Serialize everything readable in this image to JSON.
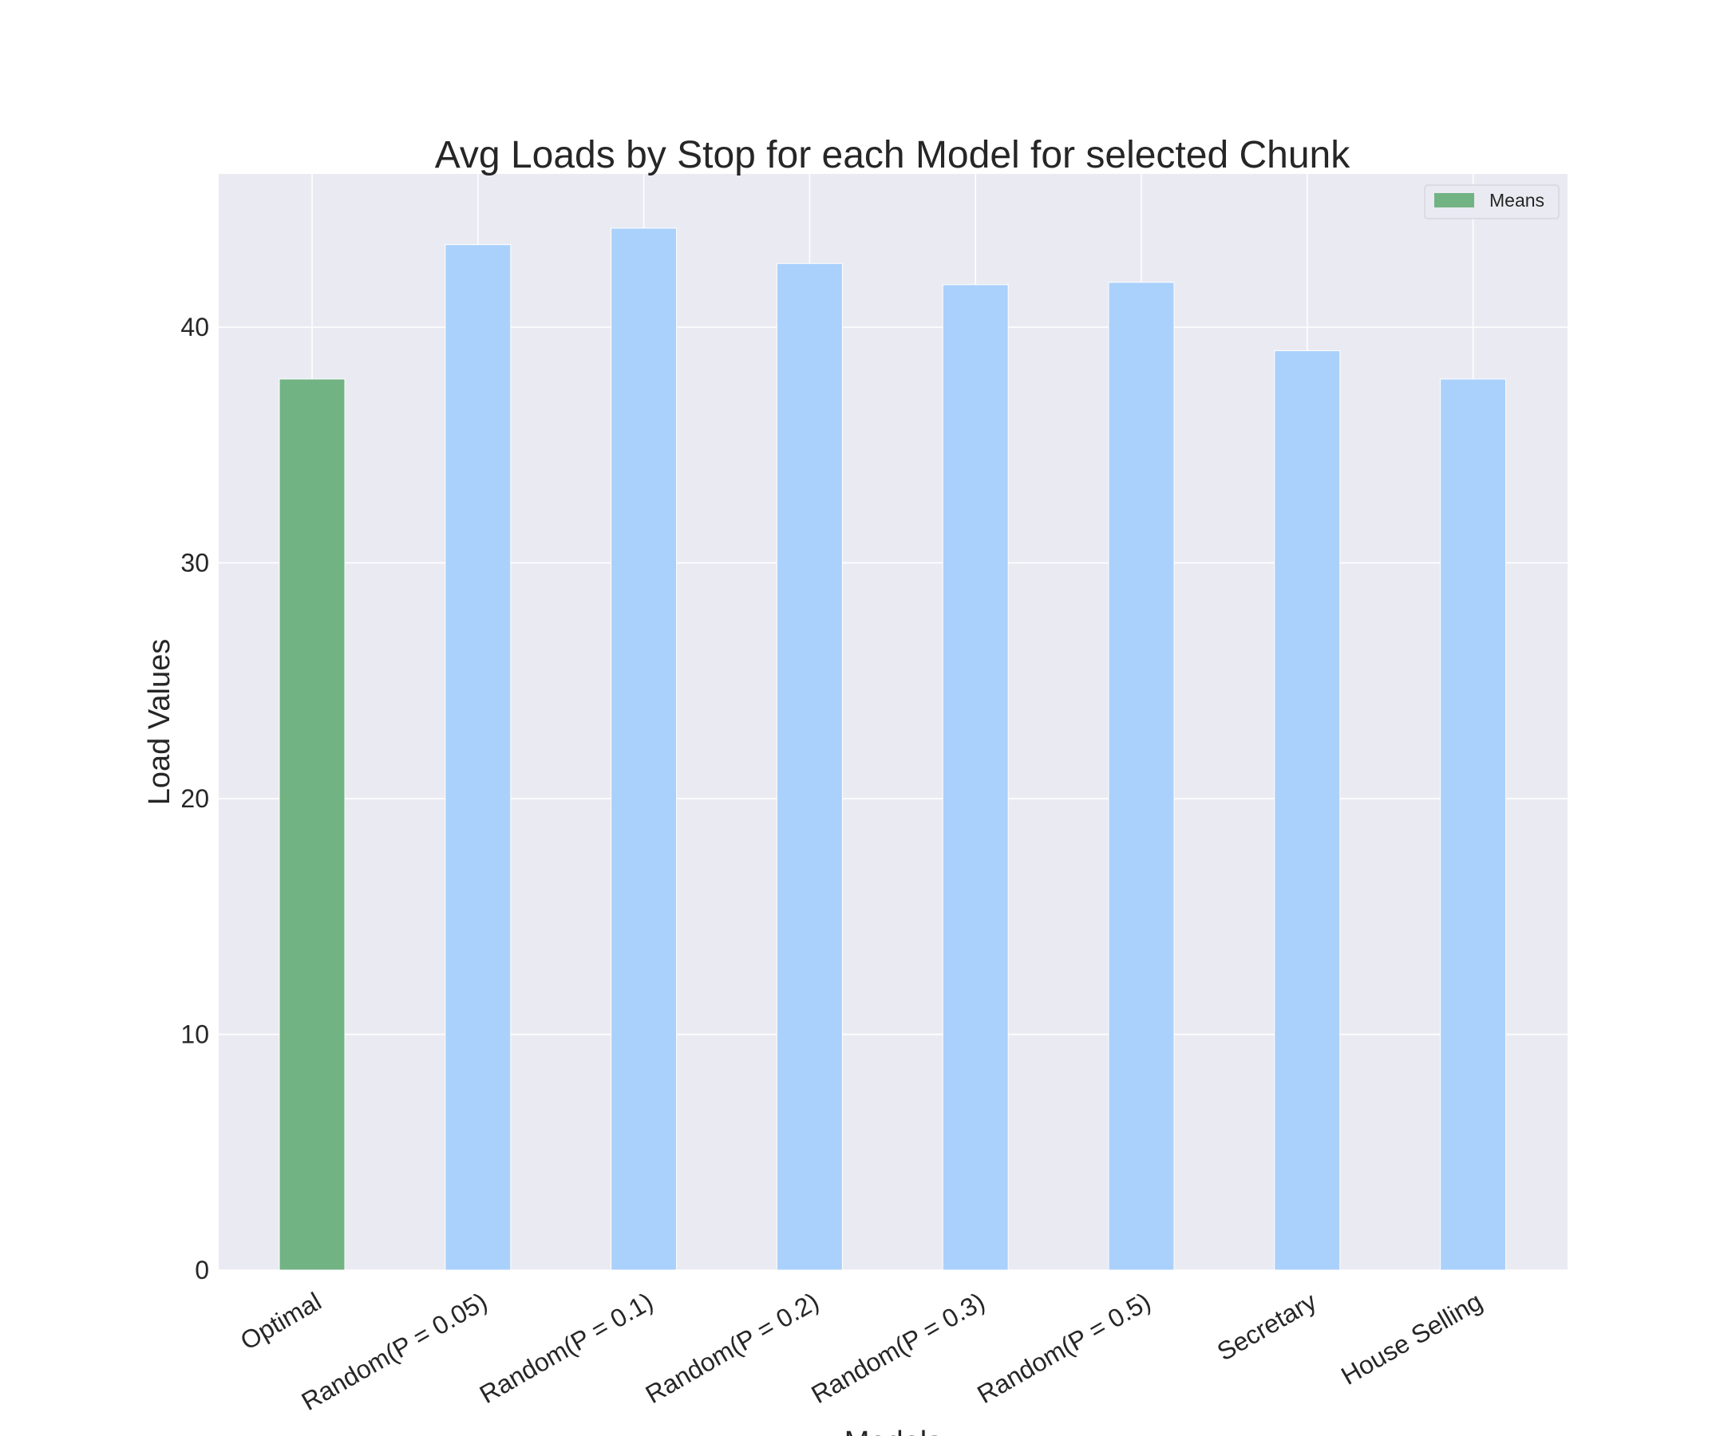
{
  "chart_data": {
    "type": "bar",
    "title": "Avg Loads by Stop for each Model for selected Chunk",
    "xlabel": "Models",
    "ylabel": "Load Values",
    "categories": [
      "Optimal",
      "Random(P = 0.05)",
      "Random(P = 0.1)",
      "Random(P = 0.2)",
      "Random(P = 0.3)",
      "Random(P = 0.5)",
      "Secretary",
      "House Selling"
    ],
    "series": [
      {
        "name": "Means",
        "values": [
          37.8,
          43.5,
          44.2,
          42.7,
          41.8,
          41.9,
          39.0,
          37.8
        ]
      }
    ],
    "highlight_index": 0,
    "highlight_color": "#72b383",
    "bar_color": "#aad1fb",
    "ylim": [
      0,
      46.5
    ],
    "yticks": [
      0,
      10,
      20,
      30,
      40
    ],
    "grid": true,
    "legend_position": "top-right",
    "style": {
      "plot_background": "#eaeaf2",
      "grid_color": "#ffffff",
      "text_color": "#262626"
    }
  }
}
